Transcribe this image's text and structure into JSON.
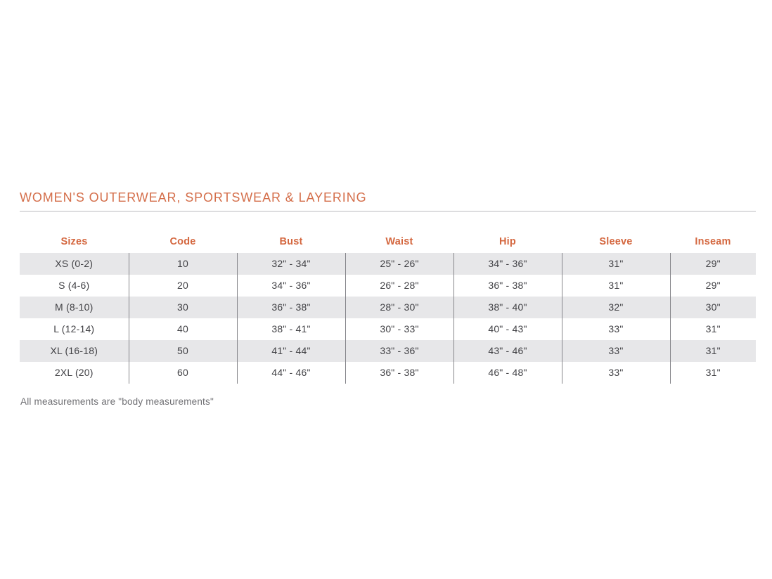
{
  "page": {
    "title": "WOMEN'S OUTERWEAR, SPORTSWEAR & LAYERING",
    "footnote": "All measurements are \"body measurements\""
  },
  "colors": {
    "accent_orange_title": "#D46E4A",
    "accent_orange_headers": "#D4673F",
    "row_stripe_gray": "#E7E7E9",
    "column_divider_gray": "#85858A",
    "title_rule_gray": "#BCBCC0",
    "body_text": "#414145",
    "footnote_text": "#6F6F73"
  },
  "table": {
    "columns": [
      "Sizes",
      "Code",
      "Bust",
      "Waist",
      "Hip",
      "Sleeve",
      "Inseam"
    ],
    "rows": [
      [
        "XS (0-2)",
        "10",
        "32\" - 34\"",
        "25\" - 26\"",
        "34\" - 36\"",
        "31\"",
        "29\""
      ],
      [
        "S (4-6)",
        "20",
        "34\" - 36\"",
        "26\" - 28\"",
        "36\" - 38\"",
        "31\"",
        "29\""
      ],
      [
        "M (8-10)",
        "30",
        "36\" - 38\"",
        "28\" - 30\"",
        "38\" - 40\"",
        "32\"",
        "30\""
      ],
      [
        "L (12-14)",
        "40",
        "38\" - 41\"",
        "30\" - 33\"",
        "40\" - 43\"",
        "33\"",
        "31\""
      ],
      [
        "XL (16-18)",
        "50",
        "41\" - 44\"",
        "33\" - 36\"",
        "43\" - 46\"",
        "33\"",
        "31\""
      ],
      [
        "2XL (20)",
        "60",
        "44\" - 46\"",
        "36\" - 38\"",
        "46\" - 48\"",
        "33\"",
        "31\""
      ]
    ]
  }
}
